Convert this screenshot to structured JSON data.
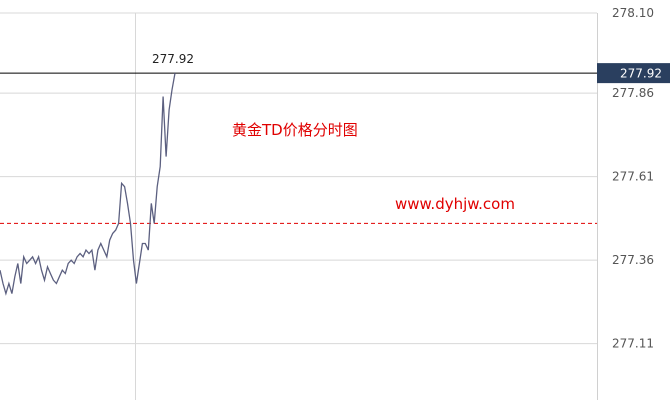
{
  "chart_data": {
    "type": "line",
    "title": "",
    "xlabel": "",
    "ylabel": "",
    "ylim": [
      277.0,
      278.13
    ],
    "y_ticks": [
      "278.10",
      "277.86",
      "277.61",
      "277.36",
      "277.11"
    ],
    "grid": true,
    "reference_line": 277.47,
    "last_price": 277.92,
    "last_price_label": "277.92",
    "line_color": "#5c6080",
    "reference_color": "#e00000",
    "last_badge_color": "#2a3f5f",
    "values": [
      277.33,
      277.29,
      277.26,
      277.29,
      277.26,
      277.31,
      277.35,
      277.29,
      277.37,
      277.35,
      277.36,
      277.37,
      277.35,
      277.37,
      277.33,
      277.3,
      277.34,
      277.32,
      277.3,
      277.29,
      277.31,
      277.33,
      277.32,
      277.35,
      277.36,
      277.35,
      277.37,
      277.38,
      277.37,
      277.39,
      277.38,
      277.39,
      277.33,
      277.39,
      277.41,
      277.39,
      277.37,
      277.42,
      277.44,
      277.45,
      277.47,
      277.59,
      277.58,
      277.53,
      277.47,
      277.36,
      277.29,
      277.35,
      277.41,
      277.41,
      277.39,
      277.53,
      277.47,
      277.58,
      277.64,
      277.85,
      277.67,
      277.81,
      277.87,
      277.92
    ]
  },
  "watermark": {
    "title": "黄金TD价格分时图",
    "site": "www.dyhjw.com"
  }
}
